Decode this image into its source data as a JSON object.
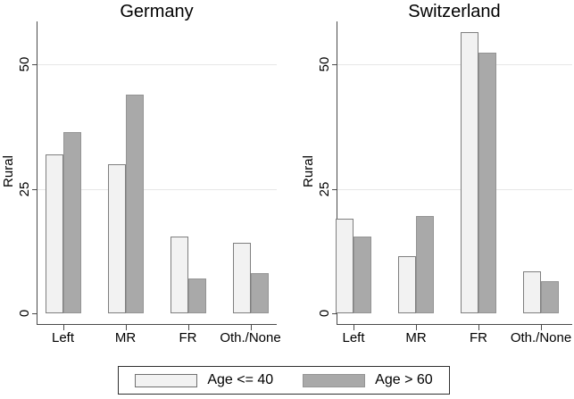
{
  "figure": {
    "ylabel": "Rural",
    "colors": {
      "background": "#ffffff",
      "light_fill": "#f2f2f2",
      "light_border": "#7f7f7f",
      "dark_fill": "#a9a9a9",
      "dark_border": "#949494",
      "gridline": "#e7e7e7",
      "axis": "#4a4a4a",
      "legend_border": "#303030"
    },
    "legend": {
      "entries": [
        {
          "label": "Age <= 40",
          "swatch": "light"
        },
        {
          "label": "Age > 60",
          "swatch": "dark"
        }
      ]
    }
  },
  "chart_data": [
    {
      "type": "bar",
      "title": "Germany",
      "ylabel": "Rural",
      "categories": [
        "Left",
        "MR",
        "FR",
        "Oth./None"
      ],
      "series": [
        {
          "name": "Age <= 40",
          "values": [
            32,
            30,
            15.5,
            14.2
          ]
        },
        {
          "name": "Age > 60",
          "values": [
            36.5,
            44,
            7,
            8
          ]
        }
      ],
      "yticks": [
        0,
        25,
        50
      ],
      "ylim": [
        0,
        58.7
      ],
      "grid": true,
      "legend_position": "bottom"
    },
    {
      "type": "bar",
      "title": "Switzerland",
      "ylabel": "Rural",
      "categories": [
        "Left",
        "MR",
        "FR",
        "Oth./None"
      ],
      "series": [
        {
          "name": "Age <= 40",
          "values": [
            19,
            11.5,
            56.5,
            8.5
          ]
        },
        {
          "name": "Age > 60",
          "values": [
            15.5,
            19.5,
            52.5,
            6.5
          ]
        }
      ],
      "yticks": [
        0,
        25,
        50
      ],
      "ylim": [
        0,
        58.7
      ],
      "grid": true,
      "legend_position": "bottom"
    }
  ]
}
